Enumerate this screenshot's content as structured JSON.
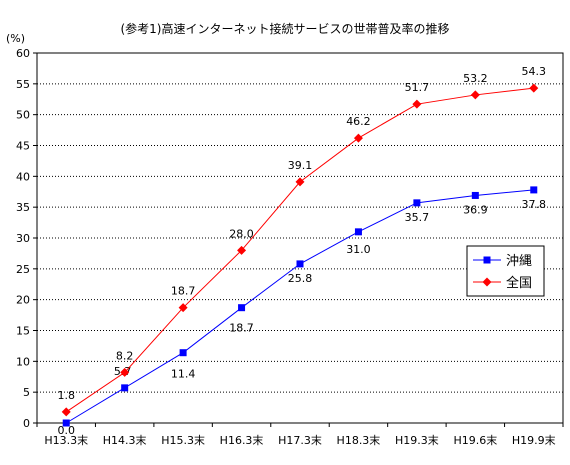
{
  "chart_data": {
    "type": "line",
    "title": "(参考1)高速インターネット接続サービスの世帯普及率の推移",
    "ylabel": "(%)",
    "xlabel": "",
    "categories": [
      "H13.3末",
      "H14.3末",
      "H15.3末",
      "H16.3末",
      "H17.3末",
      "H18.3末",
      "H19.3末",
      "H19.6末",
      "H19.9末"
    ],
    "ylim": [
      0,
      60
    ],
    "yticks": [
      0,
      5,
      10,
      15,
      20,
      25,
      30,
      35,
      40,
      45,
      50,
      55,
      60
    ],
    "grid": "horizontal-dotted",
    "legend_position": "right",
    "series": [
      {
        "name": "沖縄",
        "color": "#0000ff",
        "marker": "square",
        "values": [
          0.0,
          5.7,
          11.4,
          18.7,
          25.8,
          31.0,
          35.7,
          36.9,
          37.8
        ],
        "labels": [
          "0.0",
          "5.7",
          "11.4",
          "18.7",
          "25.8",
          "31.0",
          "35.7",
          "36.9",
          "37.8"
        ]
      },
      {
        "name": "全国",
        "color": "#ff0000",
        "marker": "diamond",
        "values": [
          1.8,
          8.2,
          18.7,
          28.0,
          39.1,
          46.2,
          51.7,
          53.2,
          54.3
        ],
        "labels": [
          "1.8",
          "8.2",
          "18.7",
          "28.0",
          "39.1",
          "46.2",
          "51.7",
          "53.2",
          "54.3"
        ]
      }
    ]
  }
}
